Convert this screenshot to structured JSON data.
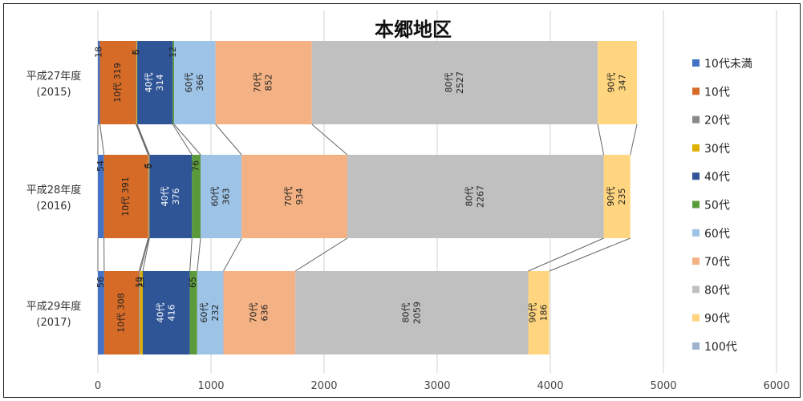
{
  "chart_data": {
    "type": "bar",
    "orientation": "horizontal",
    "stacked": true,
    "title": "本郷地区",
    "categories": [
      {
        "line1": "平成27年度",
        "line2": "(2015)"
      },
      {
        "line1": "平成28年度",
        "line2": "(2016)"
      },
      {
        "line1": "平成29年度",
        "line2": "(2017)"
      }
    ],
    "xlim": [
      0,
      6000
    ],
    "xticks": [
      0,
      1000,
      2000,
      3000,
      4000,
      5000,
      6000
    ],
    "grid": true,
    "legend_position": "right",
    "series": [
      {
        "name": "10代未満",
        "color": "#4472c4",
        "values": [
          18,
          54,
          56
        ],
        "labels": [
          [
            "18"
          ],
          [
            "54"
          ],
          [
            "56"
          ]
        ]
      },
      {
        "name": "10代",
        "color": "#d66b27",
        "values": [
          319,
          391,
          308
        ],
        "labels": [
          [
            "10代 319"
          ],
          [
            "10代 391"
          ],
          [
            "10代 308"
          ]
        ]
      },
      {
        "name": "20代",
        "color": "#8a8a8a",
        "values": [
          5,
          6,
          10
        ],
        "labels": [
          [
            "5"
          ],
          [
            "6"
          ],
          [
            "10"
          ]
        ]
      },
      {
        "name": "30代",
        "color": "#e0b000",
        "values": [
          6,
          5,
          23
        ],
        "labels": [
          [
            "6"
          ],
          [
            "5"
          ],
          [
            "23"
          ]
        ]
      },
      {
        "name": "40代",
        "color": "#2f5597",
        "values": [
          314,
          376,
          416
        ],
        "labels": [
          [
            "40代",
            "314"
          ],
          [
            "40代",
            "376"
          ],
          [
            "40代",
            "416"
          ]
        ]
      },
      {
        "name": "50代",
        "color": "#5a9a3a",
        "values": [
          12,
          76,
          65
        ],
        "labels": [
          [
            "12"
          ],
          [
            "76"
          ],
          [
            "65"
          ]
        ]
      },
      {
        "name": "60代",
        "color": "#9dc3e6",
        "values": [
          366,
          363,
          232
        ],
        "labels": [
          [
            "60代",
            "366"
          ],
          [
            "60代",
            "363"
          ],
          [
            "60代",
            "232"
          ]
        ]
      },
      {
        "name": "70代",
        "color": "#f4b183",
        "values": [
          852,
          934,
          636
        ],
        "labels": [
          [
            "70代",
            "852"
          ],
          [
            "70代",
            "934"
          ],
          [
            "70代",
            "636"
          ]
        ]
      },
      {
        "name": "80代",
        "color": "#c0c0c0",
        "values": [
          2527,
          2267,
          2059
        ],
        "labels": [
          [
            "80代",
            "2527"
          ],
          [
            "80代",
            "2267"
          ],
          [
            "80代",
            "2059"
          ]
        ]
      },
      {
        "name": "90代",
        "color": "#ffd580",
        "values": [
          347,
          235,
          186
        ],
        "labels": [
          [
            "90代",
            "347"
          ],
          [
            "90代",
            "235"
          ],
          [
            "90代",
            "186"
          ]
        ]
      },
      {
        "name": "100代",
        "color": "#a0b4d0",
        "values": [
          0,
          0,
          0
        ],
        "labels": [
          [],
          [],
          []
        ]
      }
    ]
  }
}
